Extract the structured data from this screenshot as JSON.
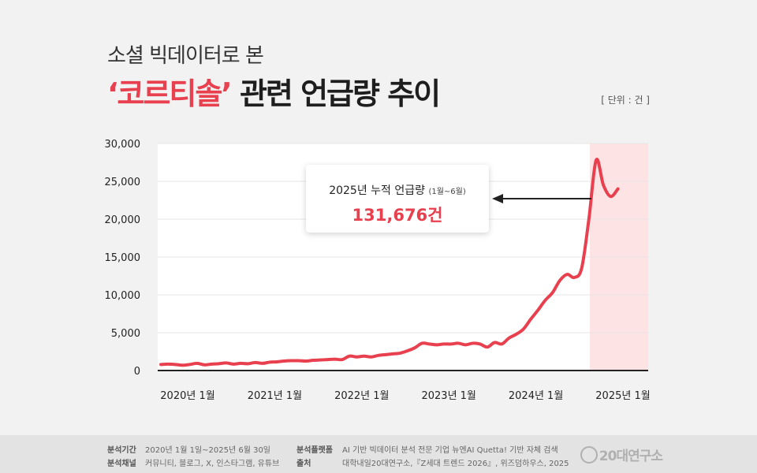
{
  "header": {
    "subtitle": "소셜 빅데이터로 본",
    "title_accent": "‘코르티솔’",
    "title_rest": " 관련 언급량 추이",
    "unit": "[ 단위 : 건 ]"
  },
  "callout": {
    "label": "2025년 누적 언급량",
    "period": "(1월~6월)",
    "value": "131,676건"
  },
  "chart_data": {
    "type": "line",
    "title": "‘코르티솔’ 관련 언급량 추이",
    "ylim": [
      0,
      30000
    ],
    "y_ticks": [
      "0",
      "5,000",
      "10,000",
      "15,000",
      "20,000",
      "25,000",
      "30,000"
    ],
    "x_tick_labels": [
      "2020년 1월",
      "2021년 1월",
      "2022년 1월",
      "2023년 1월",
      "2024년 1월",
      "2025년 1월"
    ],
    "highlight_period": "2025년 1월~6월",
    "colors": {
      "line": "#e8404e",
      "highlight": "#fde3e3",
      "grid": "#e6e6e6"
    },
    "series": [
      {
        "values": [
          [
            "2020-01",
            800
          ],
          [
            "2020-02",
            850
          ],
          [
            "2020-03",
            800
          ],
          [
            "2020-04",
            700
          ],
          [
            "2020-05",
            800
          ],
          [
            "2020-06",
            950
          ],
          [
            "2020-07",
            750
          ],
          [
            "2020-08",
            850
          ],
          [
            "2020-09",
            900
          ],
          [
            "2020-10",
            1000
          ],
          [
            "2020-11",
            850
          ],
          [
            "2020-12",
            950
          ],
          [
            "2021-01",
            900
          ],
          [
            "2021-02",
            1050
          ],
          [
            "2021-03",
            950
          ],
          [
            "2021-04",
            1100
          ],
          [
            "2021-05",
            1150
          ],
          [
            "2021-06",
            1250
          ],
          [
            "2021-07",
            1300
          ],
          [
            "2021-08",
            1300
          ],
          [
            "2021-09",
            1250
          ],
          [
            "2021-10",
            1350
          ],
          [
            "2021-11",
            1400
          ],
          [
            "2021-12",
            1450
          ],
          [
            "2022-01",
            1500
          ],
          [
            "2022-02",
            1450
          ],
          [
            "2022-03",
            1900
          ],
          [
            "2022-04",
            1800
          ],
          [
            "2022-05",
            1900
          ],
          [
            "2022-06",
            1800
          ],
          [
            "2022-07",
            2000
          ],
          [
            "2022-08",
            2100
          ],
          [
            "2022-09",
            2200
          ],
          [
            "2022-10",
            2300
          ],
          [
            "2022-11",
            2600
          ],
          [
            "2022-12",
            3000
          ],
          [
            "2023-01",
            3600
          ],
          [
            "2023-02",
            3500
          ],
          [
            "2023-03",
            3400
          ],
          [
            "2023-04",
            3500
          ],
          [
            "2023-05",
            3500
          ],
          [
            "2023-06",
            3600
          ],
          [
            "2023-07",
            3400
          ],
          [
            "2023-08",
            3600
          ],
          [
            "2023-09",
            3500
          ],
          [
            "2023-10",
            3100
          ],
          [
            "2023-11",
            3700
          ],
          [
            "2023-12",
            3500
          ],
          [
            "2024-01",
            4300
          ],
          [
            "2024-02",
            4800
          ],
          [
            "2024-03",
            5500
          ],
          [
            "2024-04",
            6800
          ],
          [
            "2024-05",
            8000
          ],
          [
            "2024-06",
            9300
          ],
          [
            "2024-07",
            10300
          ],
          [
            "2024-08",
            11900
          ],
          [
            "2024-09",
            12700
          ],
          [
            "2024-10",
            12300
          ],
          [
            "2024-11",
            13500
          ],
          [
            "2024-12",
            20000
          ],
          [
            "2025-01",
            27800
          ],
          [
            "2025-02",
            24500
          ],
          [
            "2025-03",
            23000
          ],
          [
            "2025-04",
            24000
          ]
        ]
      }
    ]
  },
  "footer": {
    "period_key": "분석기간",
    "period_val": "2020년 1월 1일~2025년 6월 30일",
    "channel_key": "분석채널",
    "channel_val": "커뮤니티, 블로그, X, 인스타그램, 유튜브",
    "platform_key": "분석플랫폼",
    "platform_val": "AI 기반 빅데이터 분석 전문 기업 뉴엔AI Quetta! 기반 자체 검색",
    "source_key": "출처",
    "source_val": "대학내일20대연구소,『Z세대 트렌드 2026』, 위즈덤하우스, 2025",
    "logo_text": "20대연구소"
  }
}
